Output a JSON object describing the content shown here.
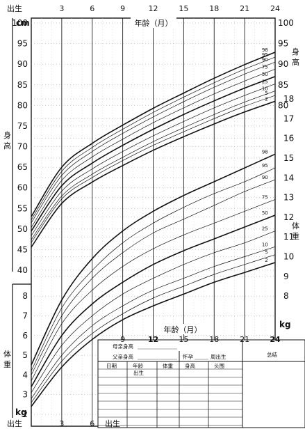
{
  "chart_data": {
    "type": "line",
    "x_axis": {
      "label": "年龄（月）",
      "tick_labels": [
        "出生",
        "3",
        "6",
        "9",
        "12",
        "15",
        "18",
        "21",
        "24"
      ],
      "ticks": [
        0,
        3,
        6,
        9,
        12,
        15,
        18,
        21,
        24
      ],
      "range": [
        0,
        24
      ]
    },
    "height_axis": {
      "unit": "cm",
      "title_left": "身高",
      "title_right": "身高",
      "left_ticks": [
        40,
        45,
        50,
        55,
        60,
        65,
        70,
        75,
        80,
        85,
        90,
        95,
        100
      ],
      "right_ticks": [
        80,
        85,
        90,
        95,
        100
      ],
      "range": [
        40,
        100
      ]
    },
    "weight_axis": {
      "unit": "kg",
      "title_left": "体重",
      "title_right": "体重",
      "left_ticks": [
        2,
        3,
        4,
        5,
        6,
        7,
        8
      ],
      "right_ticks": [
        8,
        9,
        10,
        11,
        12,
        13,
        14,
        15,
        16,
        17,
        18
      ],
      "range": [
        2,
        18
      ]
    },
    "percentile_labels": [
      "98",
      "95",
      "90",
      "75",
      "50",
      "25",
      "10",
      "5",
      "2"
    ],
    "height_series": [
      {
        "name": "98",
        "x": [
          0,
          3,
          6,
          9,
          12,
          15,
          18,
          21,
          24
        ],
        "values": [
          53.0,
          65.0,
          70.8,
          75.2,
          79.3,
          83.0,
          86.6,
          89.9,
          92.9
        ]
      },
      {
        "name": "95",
        "x": [
          0,
          3,
          6,
          9,
          12,
          15,
          18,
          21,
          24
        ],
        "values": [
          52.2,
          64.0,
          69.8,
          74.2,
          78.3,
          82.0,
          85.5,
          88.8,
          91.7
        ]
      },
      {
        "name": "90",
        "x": [
          0,
          3,
          6,
          9,
          12,
          15,
          18,
          21,
          24
        ],
        "values": [
          51.5,
          63.0,
          68.8,
          73.2,
          77.2,
          80.9,
          84.4,
          87.6,
          90.5
        ]
      },
      {
        "name": "75",
        "x": [
          0,
          3,
          6,
          9,
          12,
          15,
          18,
          21,
          24
        ],
        "values": [
          50.4,
          61.8,
          67.5,
          71.8,
          75.8,
          79.4,
          82.8,
          85.9,
          88.8
        ]
      },
      {
        "name": "50",
        "x": [
          0,
          3,
          6,
          9,
          12,
          15,
          18,
          21,
          24
        ],
        "values": [
          49.5,
          60.5,
          66.0,
          70.3,
          74.2,
          77.8,
          81.1,
          84.2,
          87.0
        ]
      },
      {
        "name": "25",
        "x": [
          0,
          3,
          6,
          9,
          12,
          15,
          18,
          21,
          24
        ],
        "values": [
          48.4,
          59.2,
          64.6,
          68.8,
          72.6,
          76.1,
          79.4,
          82.4,
          85.2
        ]
      },
      {
        "name": "10",
        "x": [
          0,
          3,
          6,
          9,
          12,
          15,
          18,
          21,
          24
        ],
        "values": [
          47.4,
          58.0,
          63.3,
          67.4,
          71.2,
          74.6,
          77.8,
          80.8,
          83.5
        ]
      },
      {
        "name": "5",
        "x": [
          0,
          3,
          6,
          9,
          12,
          15,
          18,
          21,
          24
        ],
        "values": [
          46.7,
          57.3,
          62.5,
          66.6,
          70.3,
          73.6,
          76.8,
          79.8,
          82.4
        ]
      },
      {
        "name": "2",
        "x": [
          0,
          3,
          6,
          9,
          12,
          15,
          18,
          21,
          24
        ],
        "values": [
          45.6,
          56.2,
          61.4,
          65.4,
          69.1,
          72.4,
          75.5,
          78.4,
          81.0
        ]
      }
    ],
    "weight_series": [
      {
        "name": "98",
        "x": [
          0,
          3,
          6,
          9,
          12,
          15,
          18,
          21,
          24
        ],
        "values": [
          4.5,
          7.8,
          9.9,
          11.3,
          12.3,
          13.1,
          13.8,
          14.5,
          15.2
        ]
      },
      {
        "name": "95",
        "x": [
          0,
          3,
          6,
          9,
          12,
          15,
          18,
          21,
          24
        ],
        "values": [
          4.2,
          7.4,
          9.3,
          10.7,
          11.7,
          12.5,
          13.2,
          13.8,
          14.5
        ]
      },
      {
        "name": "90",
        "x": [
          0,
          3,
          6,
          9,
          12,
          15,
          18,
          21,
          24
        ],
        "values": [
          4.0,
          7.0,
          8.9,
          10.2,
          11.2,
          11.9,
          12.6,
          13.3,
          13.9
        ]
      },
      {
        "name": "75",
        "x": [
          0,
          3,
          6,
          9,
          12,
          15,
          18,
          21,
          24
        ],
        "values": [
          3.7,
          6.6,
          8.3,
          9.5,
          10.4,
          11.1,
          11.7,
          12.3,
          12.9
        ]
      },
      {
        "name": "50",
        "x": [
          0,
          3,
          6,
          9,
          12,
          15,
          18,
          21,
          24
        ],
        "values": [
          3.4,
          6.0,
          7.6,
          8.7,
          9.6,
          10.3,
          10.9,
          11.5,
          12.1
        ]
      },
      {
        "name": "25",
        "x": [
          0,
          3,
          6,
          9,
          12,
          15,
          18,
          21,
          24
        ],
        "values": [
          3.1,
          5.5,
          7.0,
          8.1,
          8.9,
          9.6,
          10.2,
          10.7,
          11.3
        ]
      },
      {
        "name": "10",
        "x": [
          0,
          3,
          6,
          9,
          12,
          15,
          18,
          21,
          24
        ],
        "values": [
          2.8,
          5.0,
          6.5,
          7.5,
          8.3,
          8.9,
          9.5,
          10.0,
          10.5
        ]
      },
      {
        "name": "5",
        "x": [
          0,
          3,
          6,
          9,
          12,
          15,
          18,
          21,
          24
        ],
        "values": [
          2.6,
          4.7,
          6.1,
          7.1,
          7.9,
          8.5,
          9.1,
          9.6,
          10.1
        ]
      },
      {
        "name": "2",
        "x": [
          0,
          3,
          6,
          9,
          12,
          15,
          18,
          21,
          24
        ],
        "values": [
          2.4,
          4.4,
          5.8,
          6.8,
          7.5,
          8.1,
          8.7,
          9.2,
          9.7
        ]
      }
    ],
    "grid": true
  },
  "record_form": {
    "mother_height": "母亲身高",
    "father_height": "父亲身高",
    "gestation_prefix": "怀孕",
    "gestation_suffix": "周出生",
    "summary": "总结",
    "columns": [
      "日期",
      "年龄",
      "体重",
      "身高",
      "头围"
    ],
    "birth_label": "出生"
  }
}
